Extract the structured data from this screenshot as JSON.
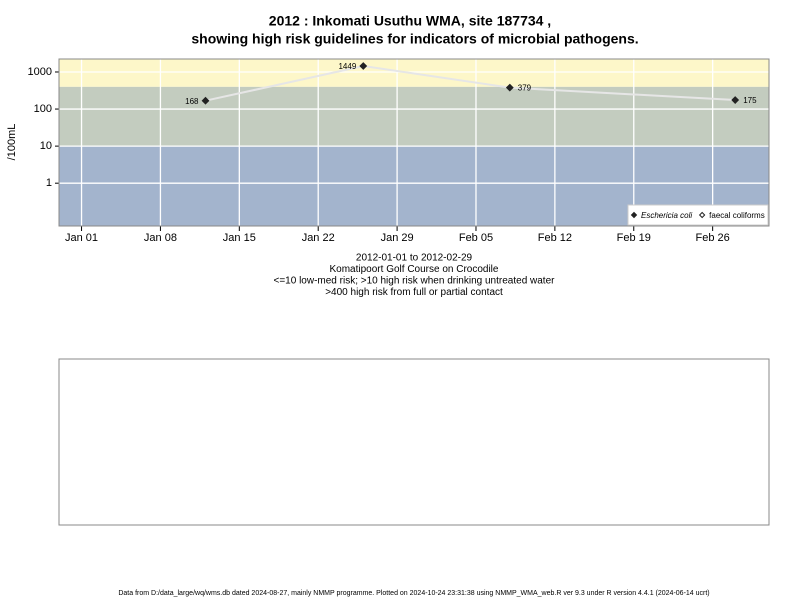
{
  "chart_data": {
    "type": "line",
    "title": "2012 : Inkomati Usuthu WMA, site 187734 ,",
    "title2": "showing high risk guidelines for indicators of microbial pathogens.",
    "y_label": "/100mL",
    "subtitle": [
      "2012-01-01 to 2012-02-29",
      "Komatipoort Golf Course on Crocodile",
      "<=10 low-med risk; >10 high risk when drinking untreated water",
      ">400 high risk from full or partial contact"
    ],
    "x": [
      "2012-01-12",
      "2012-01-26",
      "2012-02-08",
      "2012-02-28"
    ],
    "series": [
      {
        "name": "Eschericia coli",
        "color": "#222222",
        "line_color": "#e6e6e6",
        "marker": "filled",
        "values": [
          168,
          1449,
          379,
          175
        ]
      },
      {
        "name": "faecal coliforms",
        "color": "#222222",
        "marker": "open",
        "values": [
          null,
          null,
          null,
          null
        ]
      }
    ],
    "xlim": [
      "2011-12-30",
      "2012-03-02"
    ],
    "xticks": [
      {
        "value": "2012-01-01",
        "label": "Jan 01"
      },
      {
        "value": "2012-01-08",
        "label": "Jan 08"
      },
      {
        "value": "2012-01-15",
        "label": "Jan 15"
      },
      {
        "value": "2012-01-22",
        "label": "Jan 22"
      },
      {
        "value": "2012-01-29",
        "label": "Jan 29"
      },
      {
        "value": "2012-02-05",
        "label": "Feb 05"
      },
      {
        "value": "2012-02-12",
        "label": "Feb 12"
      },
      {
        "value": "2012-02-19",
        "label": "Feb 19"
      },
      {
        "value": "2012-02-26",
        "label": "Feb 26"
      }
    ],
    "ylim": [
      0.07,
      2240
    ],
    "yticks": [
      1,
      10,
      100,
      1000
    ],
    "log_y": true,
    "grid": true,
    "legend": "bottom-right",
    "bands": [
      {
        "to": 10,
        "color": "#a3b4cd"
      },
      {
        "from": 10,
        "to": 400,
        "color": "#c3ccbf"
      },
      {
        "from": 400,
        "color": "#fdf7c9"
      }
    ],
    "footer": "Data from D:/data_large/wq/wms.db dated 2024-08-27, mainly NMMP programme. Plotted on 2024-10-24 23:31:38 using NMMP_WMA_web.R ver 9.3 under R version 4.4.1 (2024-06-14 ucrt)"
  }
}
